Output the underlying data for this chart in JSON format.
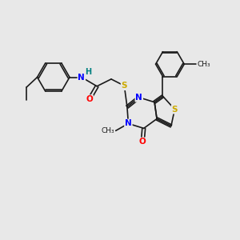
{
  "bg_color": "#e8e8e8",
  "bond_color": "#1a1a1a",
  "n_color": "#0000ff",
  "o_color": "#ff0000",
  "s_color": "#ccaa00",
  "h_color": "#008080",
  "font_size": 7.0,
  "bond_width": 1.2,
  "xlim": [
    0,
    10
  ],
  "ylim": [
    0,
    10
  ]
}
